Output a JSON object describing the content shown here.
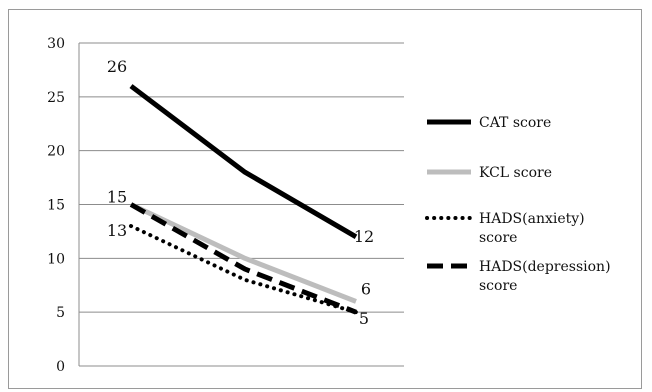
{
  "chart_data": {
    "type": "line",
    "x": [
      "",
      "",
      ""
    ],
    "ylim": [
      0,
      30
    ],
    "yticks": [
      "0",
      "5",
      "10",
      "15",
      "20",
      "25",
      "30"
    ],
    "grid": true,
    "legend_position": "right",
    "series": [
      {
        "name": "CAT score",
        "values": [
          26,
          18,
          12
        ],
        "color": "#000000",
        "style": "solid-thick",
        "labels": [
          "26",
          "",
          "12"
        ]
      },
      {
        "name": "KCL score",
        "values": [
          15,
          10,
          6
        ],
        "color": "#bdbdbd",
        "style": "solid-thick",
        "labels": [
          "15",
          "",
          "6"
        ]
      },
      {
        "name": "HADS(anxiety) score",
        "legend_lines": [
          "HADS(anxiety)",
          "score"
        ],
        "values": [
          13,
          8,
          5
        ],
        "color": "#000000",
        "style": "dotted",
        "labels": [
          "13",
          "",
          ""
        ]
      },
      {
        "name": "HADS(depression) score",
        "legend_lines": [
          "HADS(depression)",
          "score"
        ],
        "values": [
          15,
          9,
          5
        ],
        "color": "#000000",
        "style": "dashed",
        "labels": [
          "",
          "",
          "5"
        ]
      }
    ]
  }
}
